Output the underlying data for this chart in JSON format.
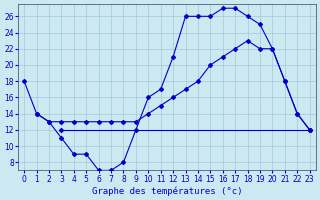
{
  "title": "Graphe des températures (°c)",
  "background_color": "#cce8f0",
  "grid_color": "#aaccdd",
  "line_color": "#0000cc",
  "xlim": [
    -0.5,
    23.5
  ],
  "ylim": [
    7,
    27.5
  ],
  "xticks": [
    0,
    1,
    2,
    3,
    4,
    5,
    6,
    7,
    8,
    9,
    10,
    11,
    12,
    13,
    14,
    15,
    16,
    17,
    18,
    19,
    20,
    21,
    22,
    23
  ],
  "yticks": [
    8,
    10,
    12,
    14,
    16,
    18,
    20,
    22,
    24,
    26
  ],
  "series1_x": [
    0,
    1,
    2,
    3,
    4,
    5,
    6,
    7,
    8,
    9,
    10,
    11,
    12,
    13,
    14,
    15,
    16,
    17,
    18,
    19,
    20,
    21,
    22,
    23
  ],
  "series1_y": [
    18,
    14,
    13,
    11,
    9,
    9,
    7,
    7,
    8,
    12,
    16,
    17,
    21,
    26,
    26,
    26,
    27,
    27,
    26,
    25,
    22,
    18,
    14,
    12
  ],
  "series2_x": [
    1,
    2,
    3,
    4,
    5,
    6,
    7,
    8,
    9,
    10,
    11,
    12,
    13,
    14,
    15,
    16,
    17,
    18,
    19,
    20,
    21,
    22,
    23
  ],
  "series2_y": [
    14,
    13,
    13,
    13,
    13,
    13,
    13,
    13,
    13,
    14,
    15,
    16,
    17,
    18,
    20,
    21,
    22,
    23,
    22,
    22,
    18,
    14,
    12
  ],
  "series3_x": [
    3,
    23
  ],
  "series3_y": [
    12,
    12
  ],
  "xlabel_fontsize": 6.5,
  "tick_fontsize": 5.5
}
